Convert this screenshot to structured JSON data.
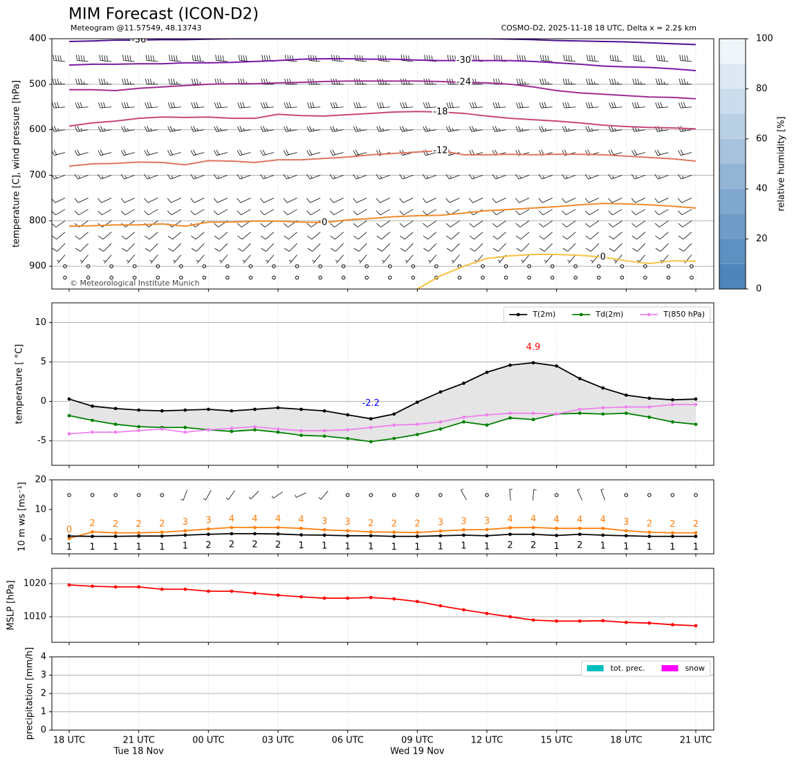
{
  "title": "MIM Forecast (ICON-D2)",
  "subtitle": "Meteogram @11.57549, 48.13743",
  "model_note": "COSMO-D2, 2025-11-18 18 UTC, Delta x = 2.2$ km",
  "copyright": "© Meteorological Institute Munich",
  "chart_data": [
    {
      "type": "contour",
      "ylabel": "temperature [C], wind pressure [hPa]",
      "ylim": [
        950,
        400
      ],
      "yticks": [
        400,
        500,
        600,
        700,
        800,
        900
      ],
      "grid": true,
      "series": [
        {
          "label": "-36",
          "color": "#4b0f8e",
          "values": [
            406,
            405,
            403,
            403,
            402,
            402,
            401,
            400,
            400,
            400,
            400,
            400,
            400,
            400,
            400,
            400,
            400,
            400,
            400,
            401,
            402,
            404,
            405,
            406,
            407,
            409,
            411,
            413
          ]
        },
        {
          "label": "-30",
          "color": "#7b16a3",
          "values": [
            458,
            456,
            456,
            455,
            455,
            453,
            453,
            452,
            450,
            448,
            445,
            444,
            444,
            445,
            445,
            447,
            448,
            448,
            448,
            448,
            450,
            453,
            456,
            460,
            462,
            463,
            466,
            470
          ]
        },
        {
          "label": "-24",
          "color": "#a02b93",
          "values": [
            512,
            512,
            514,
            509,
            506,
            503,
            500,
            499,
            499,
            497,
            496,
            494,
            493,
            493,
            493,
            493,
            494,
            496,
            497,
            500,
            506,
            514,
            519,
            522,
            525,
            528,
            529,
            532
          ]
        },
        {
          "label": "-18",
          "color": "#c8447a",
          "values": [
            592,
            585,
            581,
            575,
            572,
            573,
            572,
            575,
            575,
            566,
            569,
            570,
            567,
            564,
            561,
            560,
            561,
            564,
            570,
            575,
            578,
            581,
            585,
            590,
            593,
            595,
            596,
            598
          ]
        },
        {
          "label": "-12",
          "color": "#e0735e",
          "values": [
            680,
            675,
            674,
            671,
            672,
            677,
            668,
            669,
            672,
            666,
            666,
            663,
            660,
            655,
            652,
            649,
            646,
            655,
            655,
            654,
            655,
            654,
            654,
            655,
            658,
            661,
            664,
            669
          ]
        },
        {
          "label": "0",
          "color": "#f2892a",
          "values": [
            812,
            811,
            809,
            809,
            807,
            812,
            803,
            803,
            801,
            801,
            803,
            804,
            798,
            795,
            791,
            789,
            788,
            783,
            778,
            775,
            772,
            769,
            765,
            762,
            763,
            765,
            768,
            772
          ]
        },
        {
          "label": "0",
          "color": "#f8c040",
          "values": [
            null,
            null,
            null,
            null,
            null,
            null,
            null,
            null,
            null,
            null,
            null,
            null,
            null,
            null,
            null,
            950,
            921,
            900,
            883,
            877,
            874,
            874,
            876,
            880,
            888,
            894,
            888,
            889
          ]
        }
      ],
      "barbs": {
        "levels": [
          400,
          450,
          500,
          550,
          600,
          650,
          700,
          750,
          775,
          800,
          825,
          850,
          875,
          900,
          925
        ],
        "speed": [
          45,
          40,
          35,
          30,
          25,
          20,
          15,
          10,
          10,
          10,
          10,
          10,
          5,
          0,
          0
        ],
        "direction": [
          280,
          275,
          270,
          265,
          260,
          255,
          250,
          245,
          240,
          235,
          230,
          225,
          220,
          0,
          0
        ]
      },
      "colorbar": {
        "label": "relative humidity [%]",
        "levels": [
          0,
          10,
          20,
          30,
          40,
          50,
          60,
          70,
          80,
          90,
          100
        ],
        "colors": [
          "#4e86ba",
          "#5d91c1",
          "#6e9cc7",
          "#80a8ce",
          "#93b5d5",
          "#a6c2dc",
          "#b9cfe4",
          "#cbdcec",
          "#dde8f3",
          "#f0f5fa"
        ],
        "ticks": [
          0,
          20,
          40,
          60,
          80,
          100
        ]
      }
    },
    {
      "type": "line",
      "ylabel": "temperature [ °C]",
      "ylim": [
        -8.1,
        12.5
      ],
      "yticks": [
        -5,
        0,
        5,
        10
      ],
      "grid": true,
      "legend": "upper right",
      "fill_between": true,
      "fill_color": "#e5e5e5",
      "min_label_color": "#0000ff",
      "max_label_color": "#ff0000",
      "series": [
        {
          "name": "T(2m)",
          "color": "#000000",
          "values": [
            0.3,
            -0.6,
            -0.9,
            -1.1,
            -1.2,
            -1.1,
            -1.0,
            -1.2,
            -1.0,
            -0.8,
            -1.0,
            -1.2,
            -1.7,
            -2.2,
            -1.6,
            -0.1,
            1.2,
            2.3,
            3.7,
            4.6,
            4.9,
            4.5,
            2.9,
            1.7,
            0.8,
            0.4,
            0.2,
            0.3
          ],
          "value_labels": [
            null,
            null,
            null,
            null,
            null,
            null,
            null,
            null,
            null,
            null,
            null,
            null,
            null,
            "-2.2",
            null,
            null,
            null,
            null,
            null,
            null,
            "4.9",
            null,
            null,
            null,
            null,
            null,
            null,
            null
          ]
        },
        {
          "name": "Td(2m)",
          "color": "#008000",
          "values": [
            -1.8,
            -2.4,
            -2.9,
            -3.2,
            -3.3,
            -3.3,
            -3.6,
            -3.8,
            -3.6,
            -3.9,
            -4.3,
            -4.4,
            -4.7,
            -5.1,
            -4.7,
            -4.2,
            -3.5,
            -2.6,
            -3.0,
            -2.1,
            -2.3,
            -1.6,
            -1.5,
            -1.6,
            -1.5,
            -2.0,
            -2.6,
            -2.9
          ]
        },
        {
          "name": "T(850 hPa)",
          "color": "#ee82ee",
          "values": [
            -4.1,
            -3.9,
            -3.9,
            -3.7,
            -3.5,
            -3.9,
            -3.6,
            -3.4,
            -3.2,
            -3.5,
            -3.7,
            -3.7,
            -3.6,
            -3.3,
            -3.0,
            -2.9,
            -2.6,
            -2.0,
            -1.7,
            -1.5,
            -1.5,
            -1.6,
            -1.0,
            -0.8,
            -0.7,
            -0.7,
            -0.4,
            -0.4
          ]
        }
      ]
    },
    {
      "type": "line",
      "ylabel": "10 m ws [ms⁻¹]",
      "ylim": [
        -5,
        20
      ],
      "yticks": [
        0,
        10,
        20
      ],
      "grid": false,
      "wind_direction": [
        null,
        null,
        null,
        null,
        null,
        200,
        210,
        215,
        225,
        235,
        245,
        220,
        null,
        null,
        null,
        null,
        null,
        330,
        null,
        355,
        5,
        null,
        335,
        340,
        null,
        null,
        null,
        null
      ],
      "series": [
        {
          "color": "#ff7f0e",
          "label_position": "above",
          "values": [
            0.2,
            2.4,
            2.1,
            2.1,
            2.3,
            2.8,
            3.4,
            3.9,
            3.9,
            3.9,
            3.6,
            3.1,
            2.8,
            2.4,
            2.3,
            2.2,
            2.7,
            3.1,
            3.2,
            3.8,
            3.9,
            3.6,
            3.6,
            3.6,
            2.8,
            2.3,
            2.1,
            2.1
          ],
          "value_labels": [
            "0",
            "2",
            "2",
            "2",
            "2",
            "3",
            "3",
            "4",
            "4",
            "4",
            "4",
            "3",
            "3",
            "2",
            "2",
            "2",
            "3",
            "3",
            "3",
            "4",
            "4",
            "4",
            "4",
            "4",
            "3",
            "2",
            "2",
            "2"
          ]
        },
        {
          "color": "#000000",
          "label_position": "below",
          "values": [
            1.0,
            0.9,
            0.9,
            1.0,
            1.0,
            1.3,
            1.6,
            1.8,
            1.8,
            1.7,
            1.4,
            1.3,
            1.1,
            1.1,
            0.9,
            0.9,
            1.1,
            1.3,
            1.1,
            1.6,
            1.6,
            1.2,
            1.6,
            1.3,
            1.1,
            0.9,
            0.9,
            0.9
          ],
          "value_labels": [
            "1",
            "1",
            "1",
            "1",
            "1",
            "1",
            "2",
            "2",
            "2",
            "2",
            "1",
            "1",
            "1",
            "1",
            "1",
            "1",
            "1",
            "1",
            "1",
            "2",
            "2",
            "1",
            "2",
            "1",
            "1",
            "1",
            "1",
            "1"
          ]
        }
      ]
    },
    {
      "type": "line",
      "ylabel": "MSLP [hPa]",
      "ylim": [
        1002.3,
        1024.6
      ],
      "yticks": [
        1010,
        1020
      ],
      "grid": true,
      "series": [
        {
          "color": "#ff0000",
          "values": [
            1019.6,
            1019.2,
            1019.0,
            1019.0,
            1018.3,
            1018.3,
            1017.7,
            1017.7,
            1017.1,
            1016.5,
            1016.0,
            1015.6,
            1015.6,
            1015.8,
            1015.4,
            1014.6,
            1013.3,
            1012.1,
            1011.0,
            1010.0,
            1009.0,
            1008.7,
            1008.7,
            1008.8,
            1008.3,
            1008.1,
            1007.6,
            1007.3
          ]
        }
      ]
    },
    {
      "type": "bar",
      "ylabel": "precipitation [mm/h]",
      "ylim": [
        0,
        4
      ],
      "yticks": [
        0,
        1,
        2,
        3,
        4
      ],
      "grid": true,
      "legend": "upper right",
      "categories": [
        "18 UTC",
        null,
        null,
        "21 UTC",
        null,
        null,
        "00 UTC",
        null,
        null,
        "03 UTC",
        null,
        null,
        "06 UTC",
        null,
        null,
        "09 UTC",
        null,
        null,
        "12 UTC",
        null,
        null,
        "15 UTC",
        null,
        null,
        "18 UTC",
        null,
        null,
        "21 UTC"
      ],
      "category_sublabels": [
        null,
        null,
        null,
        "Tue 18 Nov",
        null,
        null,
        null,
        null,
        null,
        null,
        null,
        null,
        null,
        null,
        null,
        "Wed 19 Nov",
        null,
        null,
        null,
        null,
        null,
        null,
        null,
        null,
        null,
        null,
        null,
        null
      ],
      "series": [
        {
          "name": "tot. prec.",
          "color": "#00bfbf",
          "values": [
            0,
            0,
            0,
            0,
            0,
            0,
            0,
            0,
            0,
            0,
            0,
            0,
            0,
            0,
            0,
            0,
            0,
            0,
            0,
            0,
            0,
            0,
            0,
            0,
            0,
            0,
            0,
            0
          ]
        },
        {
          "name": "snow",
          "color": "#ff00ff",
          "values": [
            0,
            0,
            0,
            0,
            0,
            0,
            0,
            0,
            0,
            0,
            0,
            0,
            0,
            0,
            0,
            0,
            0,
            0,
            0,
            0,
            0,
            0,
            0,
            0,
            0,
            0,
            0,
            0
          ]
        }
      ]
    }
  ]
}
